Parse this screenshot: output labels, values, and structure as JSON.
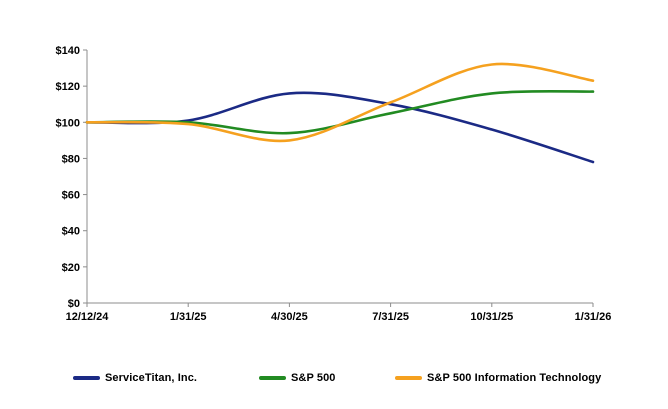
{
  "chart_data": {
    "type": "line",
    "title": "",
    "xlabel": "",
    "ylabel": "",
    "categories": [
      "12/12/24",
      "1/31/25",
      "4/30/25",
      "7/31/25",
      "10/31/25",
      "1/31/26"
    ],
    "series": [
      {
        "name": "ServiceTitan, Inc.",
        "color": "#1B2A85",
        "values": [
          100,
          101,
          116,
          110,
          96,
          78
        ]
      },
      {
        "name": "S&P 500",
        "color": "#228B22",
        "values": [
          100,
          100,
          94,
          105,
          116,
          117
        ]
      },
      {
        "name": "S&P 500 Information Technology",
        "color": "#F5A11F",
        "values": [
          100,
          99,
          90,
          111,
          132,
          123
        ]
      }
    ],
    "ylim": [
      0,
      140
    ],
    "y_tick_step": 20,
    "y_tick_labels": [
      "$0",
      "$20",
      "$40",
      "$60",
      "$80",
      "$100",
      "$120",
      "$140"
    ],
    "y_prefix": "$",
    "grid": false,
    "smooth_lines": true,
    "legend_position": "bottom"
  },
  "legend": {
    "items": [
      {
        "label": "ServiceTitan, Inc."
      },
      {
        "label": "S&P 500"
      },
      {
        "label": "S&P 500 Information Technology"
      }
    ]
  },
  "colors": {
    "axis": "#8C8C8C",
    "text": "#000000",
    "background": "#FFFFFF"
  }
}
